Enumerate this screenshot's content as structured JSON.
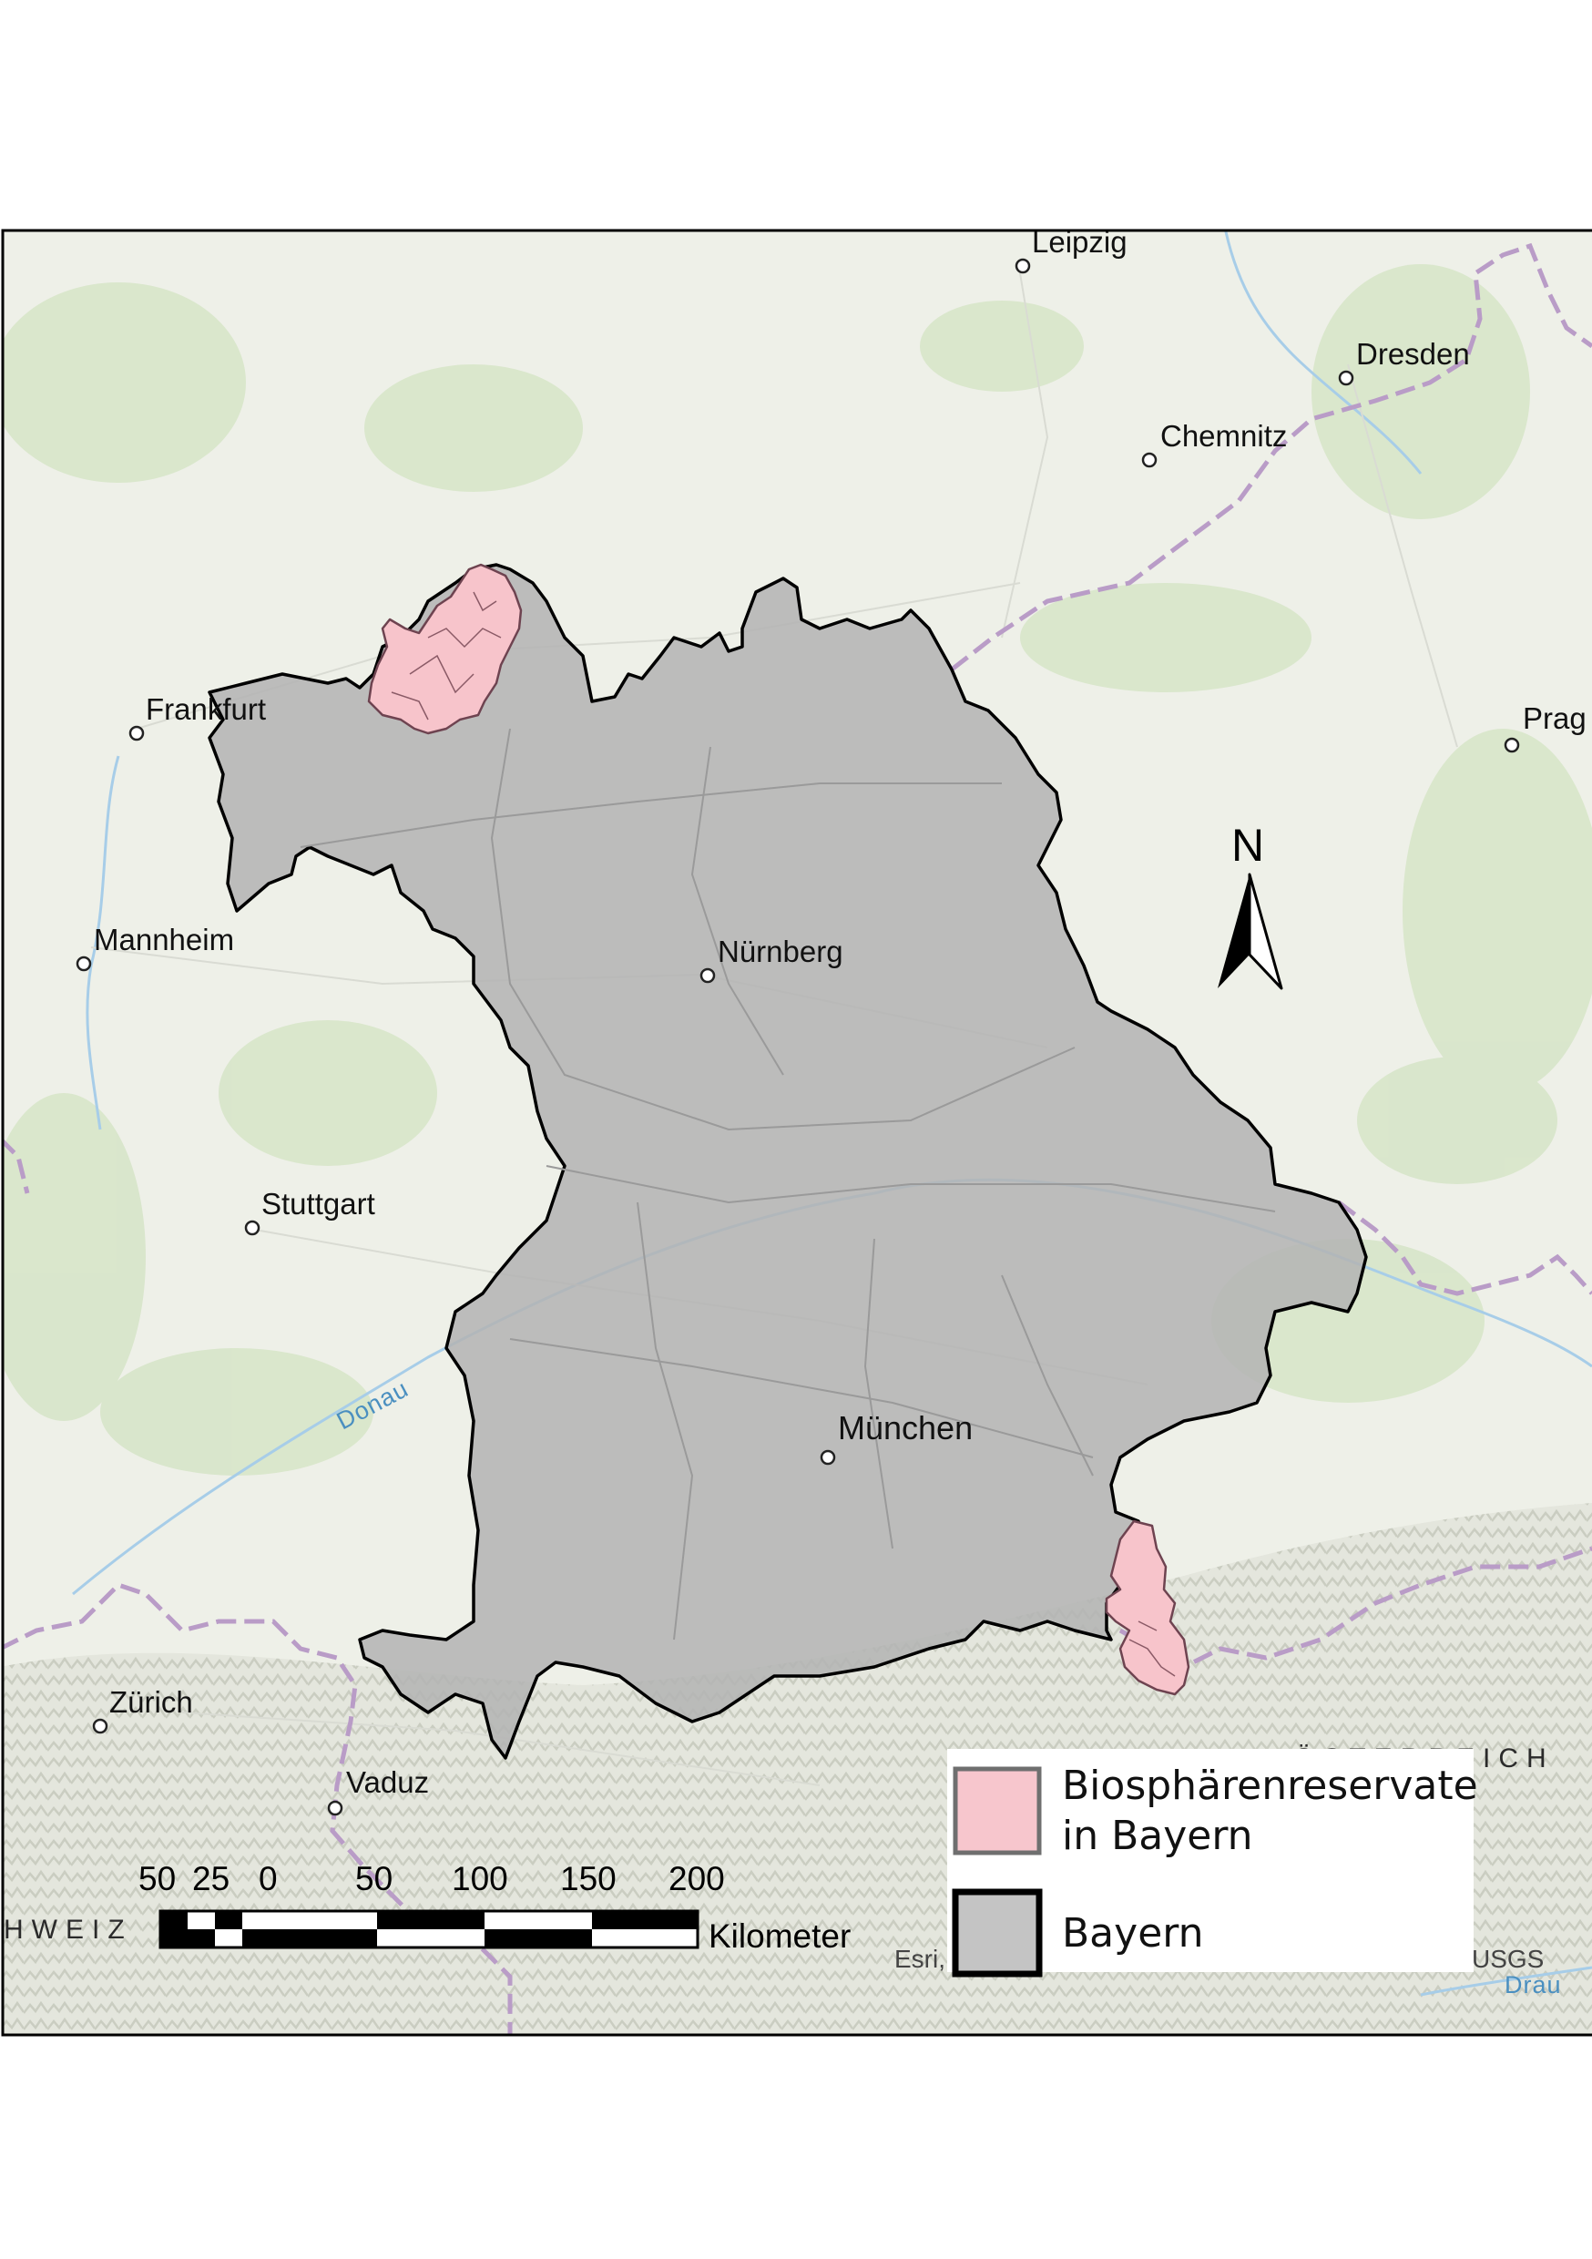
{
  "colors": {
    "terrain": "#eef0e8",
    "forest": "#d9e6cc",
    "bayern_fill": "#b5b5b5",
    "reserve_fill": "#f7c5cc",
    "reserve_stroke": "#7a4a55",
    "border": "#000000",
    "country_border": "#b79bc4",
    "river": "#9ec7e6"
  },
  "cities": [
    {
      "name": "Leipzig"
    },
    {
      "name": "Dresden"
    },
    {
      "name": "Chemnitz"
    },
    {
      "name": "Frankfurt"
    },
    {
      "name": "Prag"
    },
    {
      "name": "Mannheim"
    },
    {
      "name": "Nürnberg"
    },
    {
      "name": "Stuttgart"
    },
    {
      "name": "München"
    },
    {
      "name": "Zürich"
    },
    {
      "name": "Vaduz"
    }
  ],
  "rivers": {
    "donau": "Donau",
    "drau": "Drau"
  },
  "countries": {
    "oesterreich": "ÖSTERREICH",
    "schweiz": "HWEIZ"
  },
  "north_arrow": {
    "label": "N"
  },
  "scale_bar": {
    "ticks": [
      "50",
      "25",
      "0",
      "50",
      "100",
      "150",
      "200"
    ],
    "unit": "Kilometer"
  },
  "legend": {
    "items": [
      {
        "label_line1": "Biosphärenreservate",
        "label_line2": "in Bayern",
        "color": "#f7c5cc"
      },
      {
        "label_line1": "Bayern",
        "label_line2": "",
        "color": "#c4c4c4"
      }
    ]
  },
  "attribution": {
    "left": "Esri,",
    "right": "USGS"
  }
}
